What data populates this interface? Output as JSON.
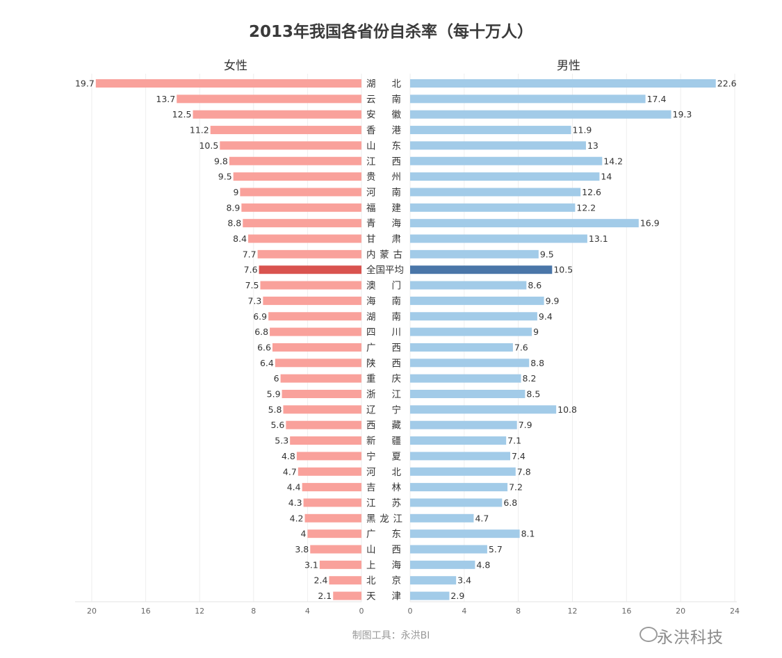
{
  "title": "2013年我国各省份自杀率（每十万人）",
  "left_panel_title": "女性",
  "right_panel_title": "男性",
  "footer": "制图工具：永洪BI",
  "watermark": "永洪科技",
  "colors": {
    "female": "#f9a19b",
    "female_highlight": "#d9534f",
    "male": "#a2cbe8",
    "male_highlight": "#4a76a8",
    "grid": "#eeeeee"
  },
  "chart_data": {
    "type": "bar",
    "orientation": "horizontal-butterfly",
    "highlight_category": "全国平均",
    "categories": [
      "湖　北",
      "云　南",
      "安　徽",
      "香　港",
      "山　东",
      "江　西",
      "贵　州",
      "河　南",
      "福　建",
      "青　海",
      "甘　肃",
      "内蒙古",
      "全国平均",
      "澳　门",
      "海　南",
      "湖　南",
      "四　川",
      "广　西",
      "陕　西",
      "重　庆",
      "浙　江",
      "辽　宁",
      "西　藏",
      "新　疆",
      "宁　夏",
      "河　北",
      "吉　林",
      "江　苏",
      "黑龙江",
      "广　东",
      "山　西",
      "上　海",
      "北　京",
      "天　津"
    ],
    "series": [
      {
        "name": "女性",
        "values": [
          19.7,
          13.7,
          12.5,
          11.2,
          10.5,
          9.8,
          9.5,
          9,
          8.9,
          8.8,
          8.4,
          7.7,
          7.6,
          7.5,
          7.3,
          6.9,
          6.8,
          6.6,
          6.4,
          6,
          5.9,
          5.8,
          5.6,
          5.3,
          4.8,
          4.7,
          4.4,
          4.3,
          4.2,
          4,
          3.8,
          3.1,
          2.4,
          2.1
        ]
      },
      {
        "name": "男性",
        "values": [
          22.6,
          17.4,
          19.3,
          11.9,
          13,
          14.2,
          14,
          12.6,
          12.2,
          16.9,
          13.1,
          9.5,
          10.5,
          8.6,
          9.9,
          9.4,
          9,
          7.6,
          8.8,
          8.2,
          8.5,
          10.8,
          7.9,
          7.1,
          7.4,
          7.8,
          7.2,
          6.8,
          4.7,
          8.1,
          5.7,
          4.8,
          3.4,
          2.9
        ]
      }
    ],
    "left_axis": {
      "ticks": [
        "20",
        "16",
        "12",
        "8",
        "4",
        "0"
      ],
      "range": [
        0,
        20
      ]
    },
    "right_axis": {
      "ticks": [
        "0",
        "4",
        "8",
        "12",
        "16",
        "20",
        "24"
      ],
      "range": [
        0,
        24
      ]
    },
    "grid": true
  }
}
